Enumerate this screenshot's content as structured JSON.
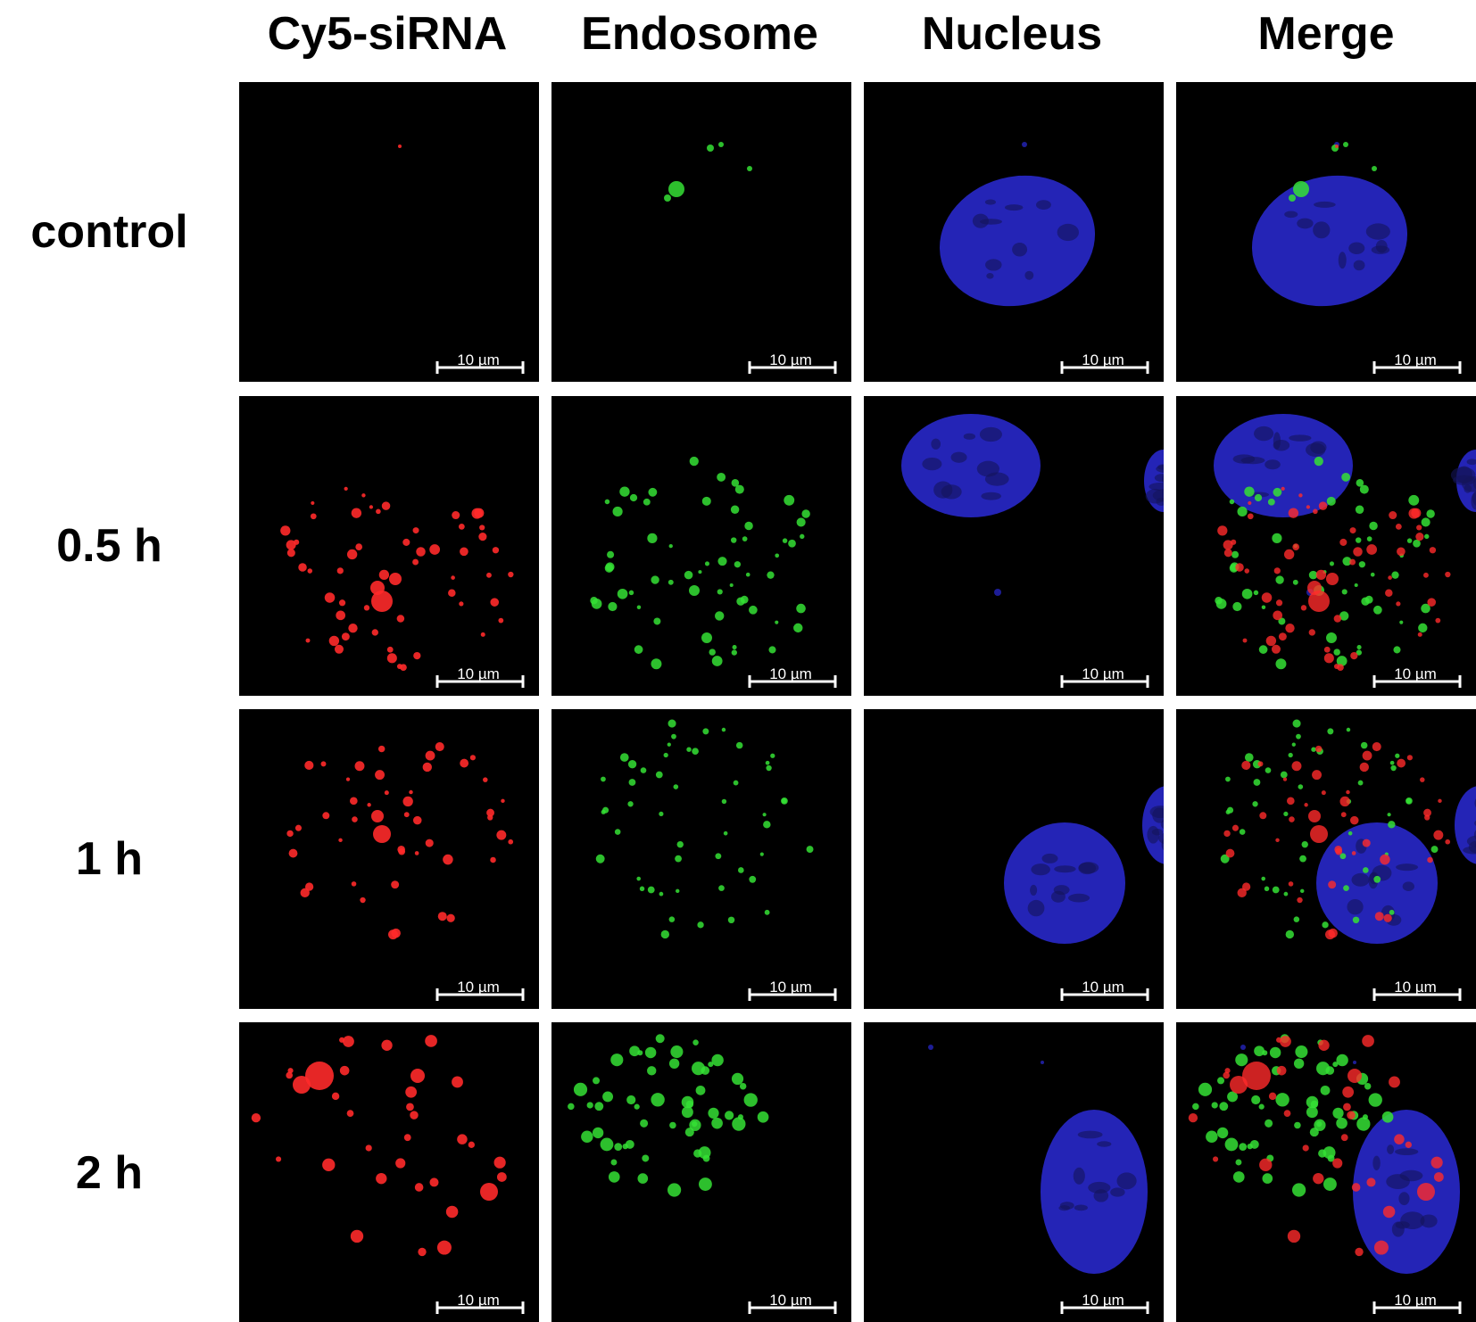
{
  "columns": [
    "Cy5-siRNA",
    "Endosome",
    "Nucleus",
    "Merge"
  ],
  "rows": [
    "control",
    "0.5 h",
    "1 h",
    "2 h"
  ],
  "scale_bar": "10 µm",
  "colors": {
    "siRNA": "#ff2a2a",
    "endosome": "#35e035",
    "nucleus": "#2a2ad6",
    "background": "#000000"
  }
}
